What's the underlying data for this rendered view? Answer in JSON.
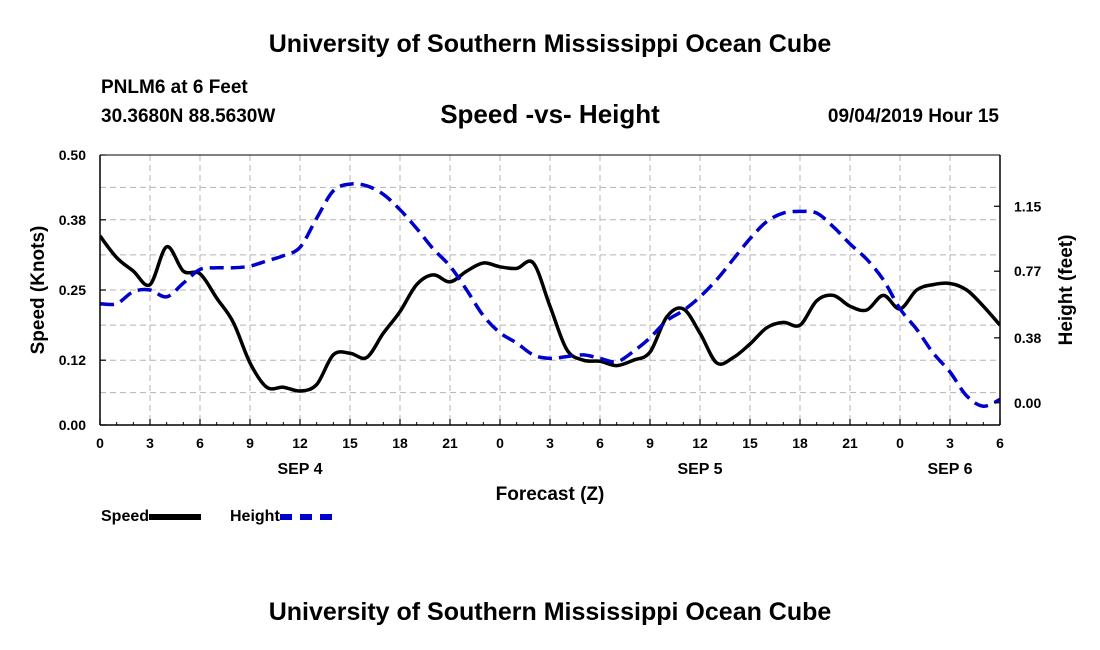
{
  "header": {
    "title": "University of Southern Mississippi Ocean Cube",
    "station": "PNLM6 at 6 Feet",
    "coordinates": "30.3680N 88.5630W",
    "chart_title": "Speed -vs- Height",
    "datetime": "09/04/2019 Hour 15",
    "footer_title": "University of Southern Mississippi Ocean Cube"
  },
  "colors": {
    "speed": "#000000",
    "height": "#0000cc",
    "grid": "#b4b4b4"
  },
  "chart_data": {
    "type": "line",
    "title": "Speed -vs- Height",
    "xlabel": "Forecast (Z)",
    "ylabel": "Speed (Knots)",
    "y2label": "Height (feet)",
    "xlim": [
      0,
      54
    ],
    "ylim": [
      0,
      0.5
    ],
    "y2lim": [
      -0.13,
      1.45
    ],
    "x_ticks": [
      0,
      3,
      6,
      9,
      12,
      15,
      18,
      21,
      24,
      27,
      30,
      33,
      36,
      39,
      42,
      45,
      48,
      51,
      54
    ],
    "x_tick_labels": [
      "0",
      "3",
      "6",
      "9",
      "12",
      "15",
      "18",
      "21",
      "0",
      "3",
      "6",
      "9",
      "12",
      "15",
      "18",
      "21",
      "0",
      "3",
      "6"
    ],
    "y_ticks": [
      0.0,
      0.12,
      0.25,
      0.38,
      0.5
    ],
    "y_tick_labels": [
      "0.00",
      "0.12",
      "0.25",
      "0.38",
      "0.50"
    ],
    "y2_ticks": [
      0.0,
      0.38,
      0.77,
      1.15
    ],
    "y2_tick_labels": [
      "0.00",
      "0.38",
      "0.77",
      "1.15"
    ],
    "date_labels": [
      {
        "x": 12,
        "label": "SEP 4"
      },
      {
        "x": 36,
        "label": "SEP 5"
      },
      {
        "x": 51,
        "label": "SEP 6"
      }
    ],
    "legend_position": "bottom-left",
    "grid": true,
    "series": [
      {
        "name": "Speed",
        "axis": "left",
        "style": "solid",
        "x": [
          0,
          1,
          2,
          3,
          4,
          5,
          6,
          7,
          8,
          9,
          10,
          11,
          12,
          13,
          14,
          15,
          16,
          17,
          18,
          19,
          20,
          21,
          22,
          23,
          24,
          25,
          26,
          27,
          28,
          29,
          30,
          31,
          32,
          33,
          34,
          35,
          36,
          37,
          38,
          39,
          40,
          41,
          42,
          43,
          44,
          45,
          46,
          47,
          48,
          49,
          50,
          51,
          52,
          53,
          54
        ],
        "values": [
          0.35,
          0.31,
          0.285,
          0.26,
          0.33,
          0.285,
          0.28,
          0.235,
          0.19,
          0.115,
          0.07,
          0.07,
          0.063,
          0.075,
          0.13,
          0.133,
          0.125,
          0.17,
          0.21,
          0.26,
          0.278,
          0.265,
          0.285,
          0.3,
          0.293,
          0.29,
          0.3,
          0.22,
          0.14,
          0.12,
          0.118,
          0.11,
          0.12,
          0.135,
          0.2,
          0.215,
          0.17,
          0.115,
          0.125,
          0.15,
          0.18,
          0.19,
          0.185,
          0.23,
          0.24,
          0.22,
          0.213,
          0.24,
          0.215,
          0.25,
          0.26,
          0.262,
          0.25,
          0.22,
          0.185
        ]
      },
      {
        "name": "Height",
        "axis": "right",
        "style": "dashed",
        "x": [
          0,
          1,
          2,
          3,
          4,
          5,
          6,
          7,
          8,
          9,
          10,
          11,
          12,
          13,
          14,
          15,
          16,
          17,
          18,
          19,
          20,
          21,
          22,
          23,
          24,
          25,
          26,
          27,
          28,
          29,
          30,
          31,
          32,
          33,
          34,
          35,
          36,
          37,
          38,
          39,
          40,
          41,
          42,
          43,
          44,
          45,
          46,
          47,
          48,
          49,
          50,
          51,
          52,
          53,
          54
        ],
        "values": [
          0.58,
          0.58,
          0.65,
          0.66,
          0.62,
          0.7,
          0.78,
          0.79,
          0.79,
          0.8,
          0.83,
          0.86,
          0.91,
          1.08,
          1.24,
          1.28,
          1.27,
          1.22,
          1.13,
          1.02,
          0.9,
          0.8,
          0.66,
          0.51,
          0.41,
          0.35,
          0.28,
          0.26,
          0.27,
          0.28,
          0.26,
          0.24,
          0.3,
          0.38,
          0.48,
          0.54,
          0.62,
          0.72,
          0.84,
          0.96,
          1.06,
          1.11,
          1.12,
          1.11,
          1.03,
          0.93,
          0.84,
          0.72,
          0.55,
          0.43,
          0.29,
          0.18,
          0.04,
          -0.02,
          0.02
        ]
      }
    ]
  },
  "legend": {
    "speed_label": "Speed",
    "height_label": "Height"
  }
}
